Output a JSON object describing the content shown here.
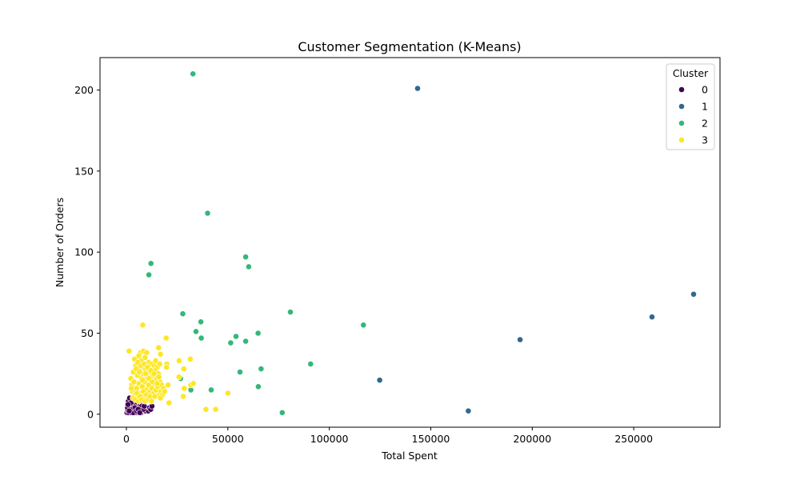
{
  "chart_data": {
    "type": "scatter",
    "title": "Customer Segmentation (K-Means)",
    "xlabel": "Total Spent",
    "ylabel": "Number of Orders",
    "xlim": [
      -13000,
      292500
    ],
    "ylim": [
      -8,
      220
    ],
    "x_ticks": [
      0,
      50000,
      100000,
      150000,
      200000,
      250000
    ],
    "y_ticks": [
      0,
      50,
      100,
      150,
      200
    ],
    "grid": false,
    "legend": {
      "title": "Cluster",
      "placement": "top-right"
    },
    "series": [
      {
        "name": "0",
        "color": "#440154",
        "points": [
          [
            300,
            1
          ],
          [
            500,
            3
          ],
          [
            700,
            2
          ],
          [
            900,
            5
          ],
          [
            1100,
            1
          ],
          [
            1300,
            4
          ],
          [
            1500,
            7
          ],
          [
            1700,
            2
          ],
          [
            1900,
            6
          ],
          [
            2100,
            3
          ],
          [
            2300,
            9
          ],
          [
            2500,
            1
          ],
          [
            2700,
            5
          ],
          [
            2900,
            8
          ],
          [
            3100,
            2
          ],
          [
            3300,
            4
          ],
          [
            3500,
            6
          ],
          [
            3700,
            1
          ],
          [
            3900,
            3
          ],
          [
            4100,
            7
          ],
          [
            4300,
            2
          ],
          [
            4500,
            5
          ],
          [
            4700,
            4
          ],
          [
            4900,
            1
          ],
          [
            5100,
            6
          ],
          [
            5300,
            3
          ],
          [
            5500,
            2
          ],
          [
            5700,
            5
          ],
          [
            5900,
            4
          ],
          [
            6100,
            1
          ],
          [
            6300,
            3
          ],
          [
            6500,
            6
          ],
          [
            6700,
            2
          ],
          [
            6900,
            4
          ],
          [
            7100,
            5
          ],
          [
            7300,
            1
          ],
          [
            7500,
            3
          ],
          [
            7700,
            2
          ],
          [
            8000,
            6
          ],
          [
            8300,
            4
          ],
          [
            8600,
            2
          ],
          [
            9000,
            3
          ],
          [
            9400,
            2
          ],
          [
            9800,
            4
          ],
          [
            10200,
            3
          ],
          [
            10800,
            2
          ],
          [
            11400,
            4
          ],
          [
            12000,
            3
          ],
          [
            12600,
            5
          ],
          [
            1000,
            8
          ],
          [
            1600,
            10
          ],
          [
            2000,
            4
          ],
          [
            2400,
            6
          ],
          [
            2800,
            3
          ],
          [
            3200,
            7
          ],
          [
            3600,
            5
          ],
          [
            4000,
            2
          ],
          [
            4400,
            8
          ],
          [
            4800,
            6
          ],
          [
            5200,
            4
          ],
          [
            5600,
            7
          ],
          [
            6000,
            3
          ],
          [
            6400,
            5
          ],
          [
            6800,
            6
          ],
          [
            7200,
            3
          ],
          [
            7600,
            5
          ],
          [
            8400,
            3
          ],
          [
            8800,
            5
          ],
          [
            2600,
            2
          ],
          [
            3400,
            1
          ],
          [
            4200,
            4
          ],
          [
            5000,
            2
          ],
          [
            5800,
            3
          ],
          [
            6600,
            1
          ],
          [
            1200,
            6
          ],
          [
            1800,
            3
          ],
          [
            2200,
            7
          ],
          [
            600,
            4
          ],
          [
            800,
            6
          ],
          [
            1400,
            2
          ]
        ]
      },
      {
        "name": "1",
        "color": "#31688e",
        "points": [
          [
            143500,
            201
          ],
          [
            279500,
            74
          ],
          [
            259000,
            60
          ],
          [
            194000,
            46
          ],
          [
            124800,
            21
          ],
          [
            168500,
            2
          ]
        ]
      },
      {
        "name": "2",
        "color": "#35b779",
        "points": [
          [
            32800,
            210
          ],
          [
            40000,
            124
          ],
          [
            58800,
            97
          ],
          [
            60300,
            91
          ],
          [
            12100,
            93
          ],
          [
            11100,
            86
          ],
          [
            80800,
            63
          ],
          [
            27800,
            62
          ],
          [
            116800,
            55
          ],
          [
            36700,
            57
          ],
          [
            34300,
            51
          ],
          [
            36900,
            47
          ],
          [
            54000,
            48
          ],
          [
            64900,
            50
          ],
          [
            51400,
            44
          ],
          [
            58800,
            45
          ],
          [
            90800,
            31
          ],
          [
            66400,
            28
          ],
          [
            56000,
            26
          ],
          [
            26700,
            22
          ],
          [
            41800,
            15
          ],
          [
            31800,
            15
          ],
          [
            65000,
            17
          ],
          [
            76800,
            1
          ]
        ]
      },
      {
        "name": "3",
        "color": "#fde725",
        "points": [
          [
            1300,
            39
          ],
          [
            8100,
            55
          ],
          [
            19600,
            47
          ],
          [
            7000,
            38
          ],
          [
            8500,
            39
          ],
          [
            10000,
            38
          ],
          [
            15900,
            41
          ],
          [
            16800,
            37
          ],
          [
            6100,
            36
          ],
          [
            7400,
            33
          ],
          [
            9200,
            35
          ],
          [
            11000,
            32
          ],
          [
            12600,
            31
          ],
          [
            13800,
            30
          ],
          [
            15200,
            29
          ],
          [
            16400,
            31
          ],
          [
            19900,
            31
          ],
          [
            19800,
            29
          ],
          [
            26000,
            33
          ],
          [
            31500,
            34
          ],
          [
            28300,
            28
          ],
          [
            25900,
            23
          ],
          [
            31700,
            18
          ],
          [
            20500,
            18
          ],
          [
            28500,
            16
          ],
          [
            28000,
            11
          ],
          [
            21000,
            7
          ],
          [
            39200,
            3
          ],
          [
            44000,
            3
          ],
          [
            50000,
            13
          ],
          [
            33000,
            19
          ],
          [
            2200,
            22
          ],
          [
            2600,
            18
          ],
          [
            3000,
            14
          ],
          [
            3400,
            26
          ],
          [
            3800,
            20
          ],
          [
            4200,
            12
          ],
          [
            4600,
            30
          ],
          [
            5000,
            16
          ],
          [
            5400,
            24
          ],
          [
            5800,
            10
          ],
          [
            6200,
            19
          ],
          [
            6600,
            27
          ],
          [
            7000,
            13
          ],
          [
            7400,
            22
          ],
          [
            7800,
            17
          ],
          [
            8200,
            25
          ],
          [
            8600,
            11
          ],
          [
            9000,
            20
          ],
          [
            9400,
            28
          ],
          [
            9800,
            15
          ],
          [
            10200,
            23
          ],
          [
            10600,
            12
          ],
          [
            11000,
            18
          ],
          [
            11400,
            26
          ],
          [
            11800,
            14
          ],
          [
            12200,
            21
          ],
          [
            12600,
            16
          ],
          [
            13000,
            24
          ],
          [
            13400,
            13
          ],
          [
            13800,
            19
          ],
          [
            14200,
            27
          ],
          [
            14600,
            15
          ],
          [
            15000,
            22
          ],
          [
            15400,
            17
          ],
          [
            15800,
            25
          ],
          [
            16200,
            12
          ],
          [
            16600,
            20
          ],
          [
            17000,
            14
          ],
          [
            17400,
            18
          ],
          [
            17800,
            12
          ],
          [
            18200,
            16
          ],
          [
            4000,
            34
          ],
          [
            4800,
            28
          ],
          [
            5600,
            32
          ],
          [
            6400,
            26
          ],
          [
            7200,
            30
          ],
          [
            8000,
            21
          ],
          [
            8800,
            31
          ],
          [
            9600,
            25
          ],
          [
            10400,
            29
          ],
          [
            11200,
            22
          ],
          [
            12000,
            27
          ],
          [
            12800,
            20
          ],
          [
            13600,
            25
          ],
          [
            14400,
            33
          ],
          [
            15200,
            19
          ],
          [
            16000,
            23
          ],
          [
            3200,
            10
          ],
          [
            4400,
            9
          ],
          [
            5200,
            13
          ],
          [
            6000,
            8
          ],
          [
            6800,
            11
          ],
          [
            7600,
            9
          ],
          [
            8400,
            14
          ],
          [
            9200,
            8
          ],
          [
            10000,
            12
          ],
          [
            10800,
            9
          ],
          [
            11600,
            11
          ],
          [
            12400,
            8
          ],
          [
            14000,
            11
          ],
          [
            16800,
            10
          ],
          [
            18800,
            14
          ],
          [
            2400,
            16
          ]
        ]
      }
    ]
  }
}
